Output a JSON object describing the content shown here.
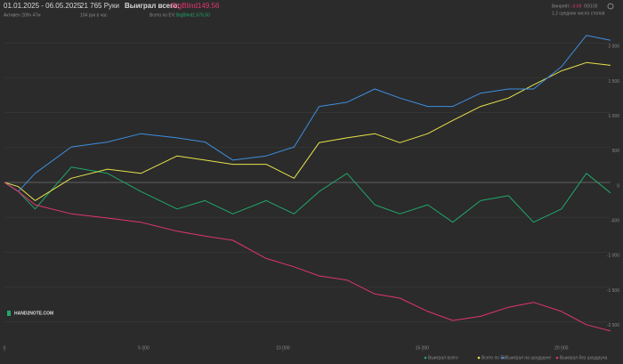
{
  "header": {
    "date_range": "01.01.2025 - 06.05.2025",
    "active": "Активен 209ч 47м",
    "hands": "21 765 Руки",
    "hands_per_hour": "104 рук в час",
    "won_label": "Выиграл всего:",
    "won_value": "-BigBlind149.56",
    "ev_label": "Всего по EV:",
    "ev_value": "BigBlind1,676.50",
    "winrate_label": "Винрейт:",
    "winrate_value": "-0.69",
    "winrate_unit": "бб/100",
    "stacks": "1.2 средних число стопов"
  },
  "logo": "HAND2NOTE.COM",
  "chart_data": {
    "type": "line",
    "x": [
      0,
      500,
      1100,
      2400,
      3700,
      4900,
      6200,
      7200,
      8200,
      9400,
      10400,
      11300,
      12300,
      13300,
      14200,
      15200,
      16100,
      17100,
      18100,
      19000,
      20000,
      20900,
      21765
    ],
    "series": [
      {
        "name": "Выиграл всего",
        "color": "#1fa86a",
        "values": [
          0,
          -130,
          -380,
          220,
          130,
          -130,
          -380,
          -260,
          -450,
          -260,
          -450,
          -130,
          130,
          -320,
          -450,
          -320,
          -570,
          -260,
          -190,
          -570,
          -380,
          130,
          -150
        ]
      },
      {
        "name": "Всего по EV",
        "color": "#e6e34a",
        "values": [
          0,
          -60,
          -260,
          60,
          190,
          130,
          380,
          320,
          260,
          260,
          60,
          570,
          640,
          700,
          570,
          700,
          890,
          1090,
          1210,
          1400,
          1600,
          1720,
          1680
        ]
      },
      {
        "name": "Выиграл на шоудауне",
        "color": "#3d8fe0",
        "values": [
          0,
          -130,
          130,
          510,
          580,
          700,
          640,
          580,
          320,
          380,
          510,
          1090,
          1150,
          1340,
          1210,
          1090,
          1090,
          1280,
          1340,
          1340,
          1660,
          2110,
          2040
        ]
      },
      {
        "name": "Выиграл без шоудауна",
        "color": "#e0356e",
        "values": [
          0,
          -130,
          -320,
          -450,
          -510,
          -570,
          -700,
          -770,
          -830,
          -1090,
          -1210,
          -1340,
          -1400,
          -1600,
          -1660,
          -1850,
          -1980,
          -1920,
          -1790,
          -1720,
          -1850,
          -2040,
          -2130
        ]
      }
    ],
    "xlim": [
      0,
      21765
    ],
    "xticks": [
      0,
      {
        "value": 5000,
        "label": "5 000"
      },
      {
        "value": 10000,
        "label": "10 000"
      },
      {
        "value": 15000,
        "label": "15 000"
      },
      {
        "value": 20000,
        "label": "20 000"
      }
    ],
    "ylim": [
      -2400,
      2400
    ],
    "yticks": [
      {
        "value": -2000,
        "label": "-2 000"
      },
      {
        "value": -1500,
        "label": "-1 500"
      },
      {
        "value": -1000,
        "label": "-1 000"
      },
      -500,
      0,
      500,
      {
        "value": 1000,
        "label": "1 000"
      },
      {
        "value": 1500,
        "label": "1 500"
      },
      {
        "value": 2000,
        "label": "2 000"
      }
    ],
    "grid": true
  }
}
